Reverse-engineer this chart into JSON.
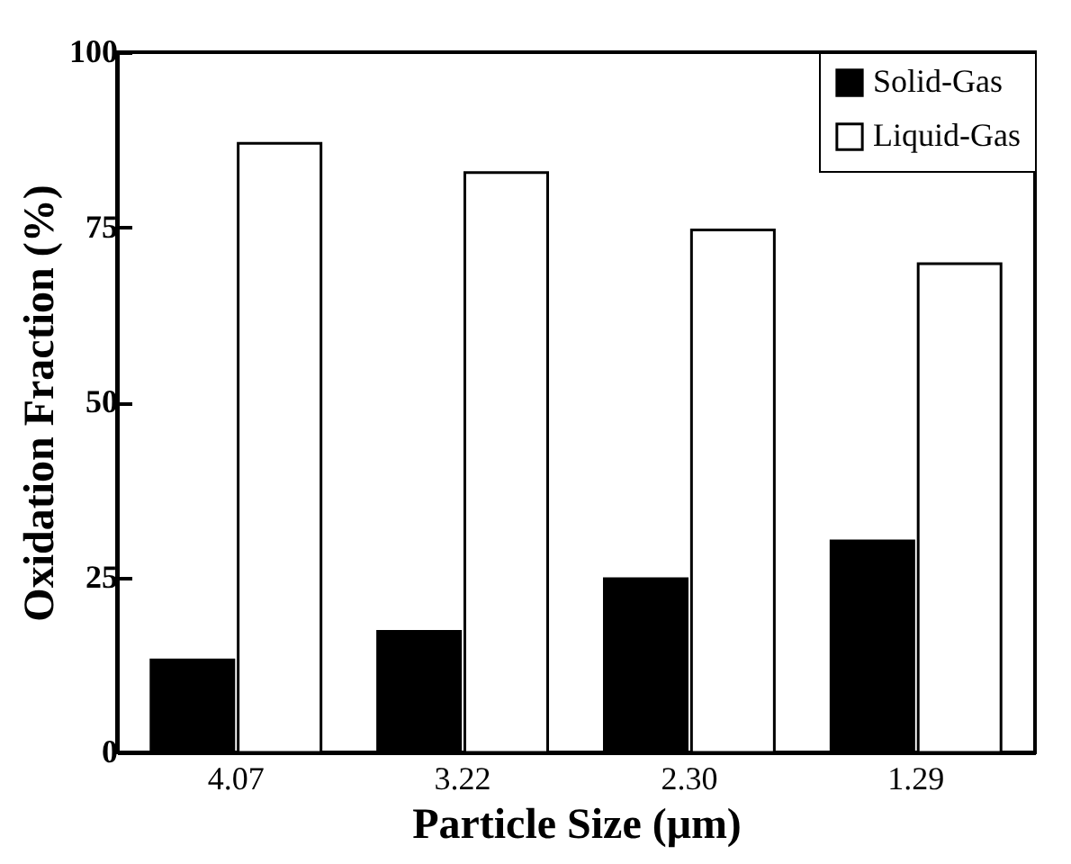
{
  "chart_data": {
    "type": "bar",
    "xlabel": "Particle Size (μm)",
    "ylabel": "Oxidation Fraction (%)",
    "categories": [
      "4.07",
      "3.22",
      "2.30",
      "1.29"
    ],
    "series": [
      {
        "name": "Solid-Gas",
        "color": "#000000",
        "values": [
          13.2,
          17.3,
          24.8,
          30.2
        ]
      },
      {
        "name": "Liquid-Gas",
        "color": "#ffffff",
        "values": [
          87.0,
          82.8,
          74.6,
          69.8
        ]
      }
    ],
    "ylim": [
      0,
      100
    ],
    "yticks": [
      0,
      25,
      50,
      75,
      100
    ],
    "legend": "top right"
  }
}
